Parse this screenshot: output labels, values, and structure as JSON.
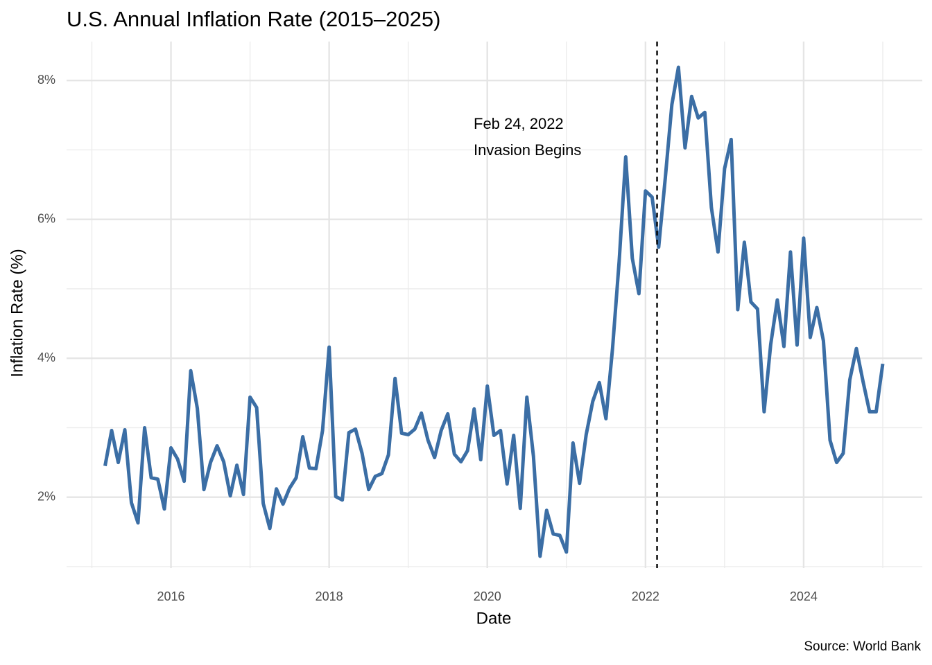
{
  "chart_data": {
    "type": "line",
    "title": "U.S. Annual Inflation Rate (2015–2025)",
    "x_label": "Date",
    "y_label": "Inflation Rate (%)",
    "caption": "Source: World Bank",
    "x": [
      "2015-03",
      "2015-04",
      "2015-05",
      "2015-06",
      "2015-07",
      "2015-08",
      "2015-09",
      "2015-10",
      "2015-11",
      "2015-12",
      "2016-01",
      "2016-02",
      "2016-03",
      "2016-04",
      "2016-05",
      "2016-06",
      "2016-07",
      "2016-08",
      "2016-09",
      "2016-10",
      "2016-11",
      "2016-12",
      "2017-01",
      "2017-02",
      "2017-03",
      "2017-04",
      "2017-05",
      "2017-06",
      "2017-07",
      "2017-08",
      "2017-09",
      "2017-10",
      "2017-11",
      "2017-12",
      "2018-01",
      "2018-02",
      "2018-03",
      "2018-04",
      "2018-05",
      "2018-06",
      "2018-07",
      "2018-08",
      "2018-09",
      "2018-10",
      "2018-11",
      "2018-12",
      "2019-01",
      "2019-02",
      "2019-03",
      "2019-04",
      "2019-05",
      "2019-06",
      "2019-07",
      "2019-08",
      "2019-09",
      "2019-10",
      "2019-11",
      "2019-12",
      "2020-01",
      "2020-02",
      "2020-03",
      "2020-04",
      "2020-05",
      "2020-06",
      "2020-07",
      "2020-08",
      "2020-09",
      "2020-10",
      "2020-11",
      "2020-12",
      "2021-01",
      "2021-02",
      "2021-03",
      "2021-04",
      "2021-05",
      "2021-06",
      "2021-07",
      "2021-08",
      "2021-09",
      "2021-10",
      "2021-11",
      "2021-12",
      "2022-01",
      "2022-02",
      "2022-03",
      "2022-04",
      "2022-05",
      "2022-06",
      "2022-07",
      "2022-08",
      "2022-09",
      "2022-10",
      "2022-11",
      "2022-12",
      "2023-01",
      "2023-02",
      "2023-03",
      "2023-04",
      "2023-05",
      "2023-06",
      "2023-07",
      "2023-08",
      "2023-09",
      "2023-10",
      "2023-11",
      "2023-12",
      "2024-01",
      "2024-02",
      "2024-03",
      "2024-04",
      "2024-05",
      "2024-06",
      "2024-07",
      "2024-08",
      "2024-09",
      "2024-10",
      "2024-11",
      "2024-12",
      "2025-01"
    ],
    "series": [
      {
        "name": "Inflation Rate",
        "color": "#3b6ea5",
        "values": [
          2.45,
          2.96,
          2.5,
          2.97,
          1.92,
          1.63,
          3.0,
          2.28,
          2.26,
          1.83,
          2.71,
          2.55,
          2.23,
          3.82,
          3.28,
          2.11,
          2.5,
          2.74,
          2.51,
          2.02,
          2.46,
          2.04,
          3.44,
          3.29,
          1.91,
          1.55,
          2.12,
          1.9,
          2.13,
          2.28,
          2.87,
          2.42,
          2.41,
          2.96,
          4.16,
          2.01,
          1.96,
          2.93,
          2.98,
          2.63,
          2.11,
          2.3,
          2.34,
          2.61,
          3.71,
          2.92,
          2.9,
          2.98,
          3.21,
          2.82,
          2.57,
          2.96,
          3.2,
          2.62,
          2.51,
          2.67,
          3.27,
          2.54,
          3.6,
          2.89,
          2.96,
          2.19,
          2.89,
          1.84,
          3.44,
          2.59,
          1.15,
          1.81,
          1.47,
          1.45,
          1.21,
          2.78,
          2.2,
          2.9,
          3.38,
          3.65,
          3.13,
          4.14,
          5.39,
          6.9,
          5.44,
          4.93,
          6.41,
          6.32,
          5.6,
          6.59,
          7.65,
          8.19,
          7.03,
          7.77,
          7.46,
          7.54,
          6.17,
          5.53,
          6.73,
          7.15,
          4.7,
          5.67,
          4.81,
          4.71,
          3.23,
          4.2,
          4.84,
          4.17,
          5.53,
          4.19,
          5.73,
          4.3,
          4.73,
          4.25,
          2.82,
          2.5,
          2.63,
          3.69,
          4.14,
          3.67,
          3.23,
          3.23,
          3.92
        ]
      }
    ],
    "xlim": [
      2014.68,
      2025.5
    ],
    "xticks": [
      2016,
      2018,
      2020,
      2022,
      2024
    ],
    "x_minor_ticks": [
      2015,
      2017,
      2019,
      2021,
      2023,
      2025
    ],
    "ylim": [
      0.98,
      8.56
    ],
    "yticks": [
      {
        "value": 2,
        "label": "2%"
      },
      {
        "value": 4,
        "label": "4%"
      },
      {
        "value": 6,
        "label": "6%"
      },
      {
        "value": 8,
        "label": "8%"
      }
    ],
    "y_minor_ticks": [
      1,
      3,
      5,
      7
    ],
    "grid": true,
    "event": {
      "x": "2022-02-24",
      "label": [
        "Feb 24, 2022",
        "Invasion Begins"
      ]
    }
  }
}
